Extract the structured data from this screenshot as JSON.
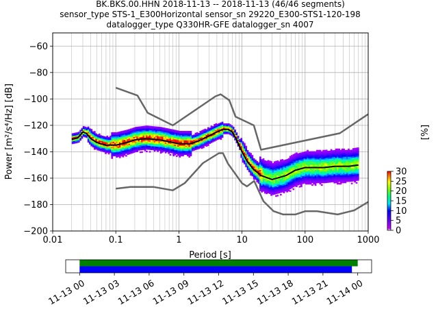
{
  "title_lines": [
    "BK.BKS.00.HHN   2018-11-13 -- 2018-11-13  (46/46 segments)",
    "sensor_type STS-1_E300Horizontal sensor_sn 29220_E300-STS1-120-198",
    "datalogger_type Q330HR-GFE datalogger_sn 4007"
  ],
  "chart_data": {
    "type": "heatmap",
    "xlabel": "Period [s]",
    "ylabel": "Power [m²/s⁴/Hz] [dB]",
    "xscale": "log",
    "xlim": [
      0.01,
      1000
    ],
    "ylim": [
      -200,
      -50
    ],
    "xticks": [
      0.01,
      0.1,
      1,
      10,
      100,
      1000
    ],
    "xtick_labels": [
      "0.01",
      "0.1",
      "1",
      "10",
      "100",
      "1000"
    ],
    "yticks": [
      -200,
      -180,
      -160,
      -140,
      -120,
      -100,
      -80,
      -60
    ],
    "ytick_labels": [
      "−200",
      "−180",
      "−160",
      "−140",
      "−120",
      "−100",
      "−80",
      "−60"
    ],
    "grid": true,
    "colorbar": {
      "label": "[%]",
      "range": [
        0,
        30
      ],
      "ticks": [
        0,
        5,
        10,
        15,
        20,
        25,
        30
      ],
      "tick_labels": [
        "0",
        "5",
        "10",
        "15",
        "20",
        "25",
        "30"
      ],
      "colormap": "pqlx"
    },
    "series": [
      {
        "style": "nlnm_nhnm",
        "color": "#666666",
        "x": [
          0.1,
          0.17,
          0.4,
          0.8,
          1.24,
          2.4,
          4.3,
          5,
          6,
          10,
          12,
          15.6,
          21.9,
          31.6,
          45,
          70,
          101,
          154,
          328,
          600,
          1000
        ],
        "y": [
          -168,
          -166.7,
          -166.7,
          -169.2,
          -163.7,
          -148.6,
          -141.1,
          -141.1,
          -149,
          -163.8,
          -166.2,
          -162.1,
          -177.5,
          -185,
          -187.5,
          -187.5,
          -185,
          -185,
          -187.5,
          -184.4,
          -178
        ]
      },
      {
        "style": "nlnm_nhnm",
        "color": "#666666",
        "x": [
          0.1,
          0.22,
          0.32,
          0.8,
          3.8,
          4.6,
          6.3,
          7.9,
          15.4,
          20,
          354.8,
          1000
        ],
        "y": [
          -91.5,
          -97.4,
          -110.5,
          -120,
          -98,
          -96.5,
          -101,
          -113.5,
          -120,
          -138.5,
          -126,
          -111.5
        ]
      },
      {
        "style": "mode",
        "color": "#000000",
        "x": [
          0.02,
          0.025,
          0.03,
          0.034,
          0.04,
          0.05,
          0.07,
          0.1,
          0.15,
          0.2,
          0.3,
          0.5,
          0.8,
          1,
          1.5,
          2,
          3,
          4,
          5,
          6,
          7,
          8,
          10,
          12,
          15,
          20,
          30,
          50,
          70,
          100,
          200,
          300,
          500,
          700
        ],
        "y": [
          -130.5,
          -129.5,
          -125,
          -126,
          -130,
          -133,
          -135,
          -135,
          -133,
          -131,
          -130,
          -131,
          -133,
          -134,
          -134,
          -132,
          -128,
          -125,
          -123,
          -123,
          -125,
          -130,
          -140,
          -147,
          -153,
          -158,
          -161,
          -158,
          -154,
          -152,
          -152,
          -151,
          -151,
          -150
        ]
      }
    ],
    "time_axis": {
      "tick_labels": [
        "11-13 00",
        "11-13 03",
        "11-13 06",
        "11-13 09",
        "11-13 12",
        "11-13 15",
        "11-13 18",
        "11-13 21",
        "11-14 00"
      ],
      "range_hours": [
        -1.2,
        25.2
      ],
      "bars": [
        {
          "color": "#008000",
          "start_hours": 0,
          "end_hours": 24
        },
        {
          "color": "#0000ff",
          "start_hours": 0,
          "end_hours": 23.5
        }
      ]
    }
  }
}
